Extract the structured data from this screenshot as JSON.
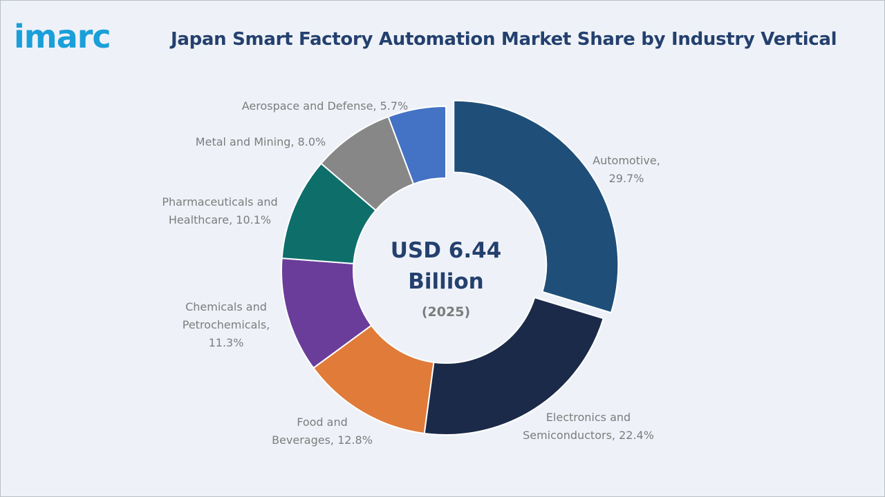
{
  "brand": {
    "logo_text": "imarc",
    "color": "#1a9fd9"
  },
  "chart_data": {
    "type": "pie",
    "title": "Japan Smart Factory Automation Market Share by Industry Vertical",
    "center_value_line1": "USD 6.44",
    "center_value_line2": "Billion",
    "center_year": "(2025)",
    "slices": [
      {
        "name": "Automotive",
        "value": 29.7,
        "label_lines": [
          "Automotive,",
          "29.7%"
        ],
        "color": "#1f4e79",
        "exploded": true
      },
      {
        "name": "Electronics and Semiconductors",
        "value": 22.4,
        "label_lines": [
          "Electronics and",
          "Semiconductors, 22.4%"
        ],
        "color": "#1b2a49"
      },
      {
        "name": "Food and Beverages",
        "value": 12.8,
        "label_lines": [
          "Food and",
          "Beverages, 12.8%"
        ],
        "color": "#e07b39"
      },
      {
        "name": "Chemicals and Petrochemicals",
        "value": 11.3,
        "label_lines": [
          "Chemicals and",
          "Petrochemicals,",
          "11.3%"
        ],
        "color": "#6a3d9a"
      },
      {
        "name": "Pharmaceuticals and Healthcare",
        "value": 10.1,
        "label_lines": [
          "Pharmaceuticals and",
          "Healthcare, 10.1%"
        ],
        "color": "#0e6e6a"
      },
      {
        "name": "Metal and Mining",
        "value": 8.0,
        "label_lines": [
          "Metal and Mining, 8.0%"
        ],
        "color": "#878787"
      },
      {
        "name": "Aerospace and Defense",
        "value": 5.7,
        "label_lines": [
          "Aerospace and Defense, 5.7%"
        ],
        "color": "#4472c4"
      }
    ]
  }
}
